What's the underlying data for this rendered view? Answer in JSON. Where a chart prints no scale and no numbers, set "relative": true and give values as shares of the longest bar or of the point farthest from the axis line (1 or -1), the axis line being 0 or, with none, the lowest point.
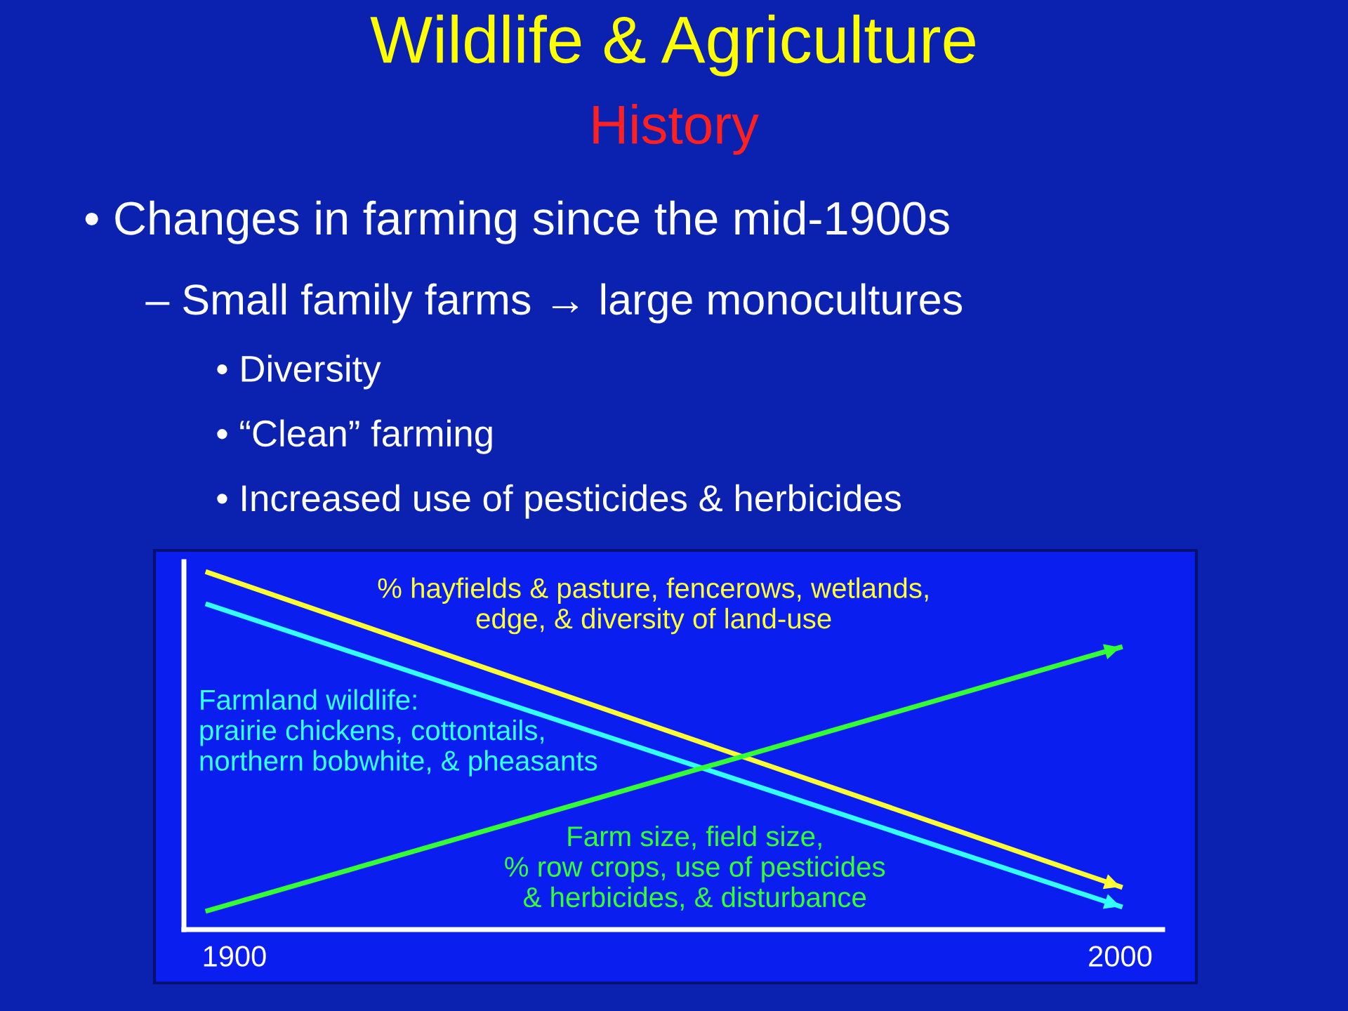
{
  "chart_data": {
    "type": "line",
    "relative": true,
    "title": "Wildlife & Agriculture",
    "subtitle": "History",
    "annotations": [
      "• Changes in farming since the mid-1900s",
      "– Small family farms → large monocultures",
      "• Diversity",
      "• “Clean” farming",
      "• Increased use of pesticides & herbicides"
    ],
    "xlim": [
      1894.3,
      2004.8
    ],
    "xticks": [
      1900,
      2000
    ],
    "grid": false,
    "legend": false,
    "marker": "none",
    "line_style": "solid",
    "x": [
      1897,
      2000
    ],
    "series": [
      {
        "name": "% hayfields & pasture, fencerows, wetlands,\nedge, & diversity of land-use",
        "color": "#ffff33",
        "values": [
          1.0,
          0.12
        ]
      },
      {
        "name": "Farmland wildlife:\nprairie chickens, cottontails,\nnorthern bobwhite, & pheasants",
        "color": "#33ffff",
        "values": [
          0.91,
          0.065
        ]
      },
      {
        "name": "Farm size, field size,\n% row crops, use of pesticides\n& herbicides, & disturbance",
        "color": "#33ff33",
        "values": [
          0.053,
          0.79
        ]
      }
    ]
  }
}
